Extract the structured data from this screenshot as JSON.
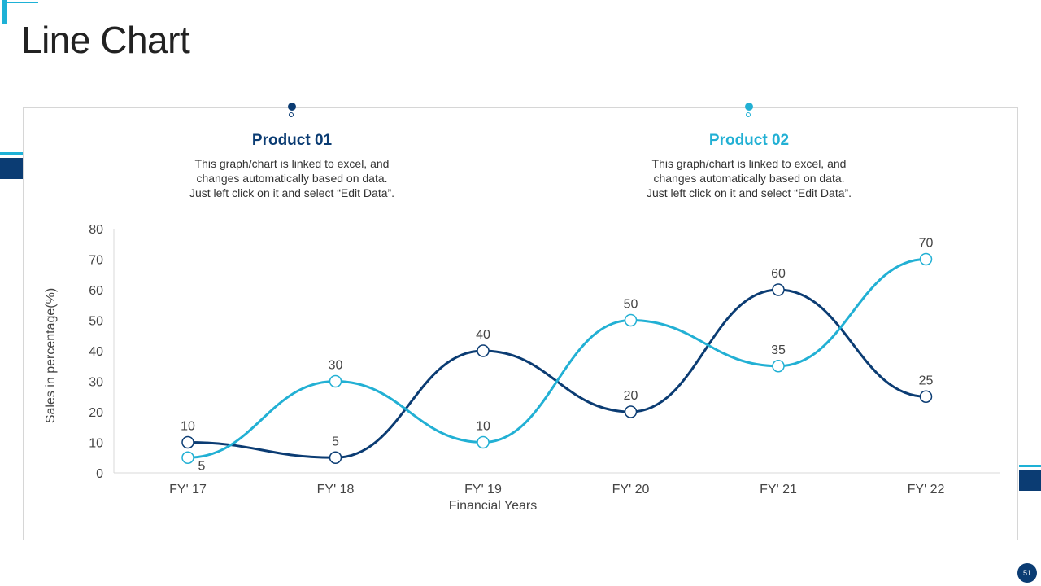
{
  "title": "Line Chart",
  "page_number": "51",
  "colors": {
    "product1": "#0b3c73",
    "product2": "#22b0d4",
    "accent": "#1eb1d6"
  },
  "products": [
    {
      "name": "Product 01",
      "description": "This graph/chart is linked to excel, and\nchanges automatically based on data.\nJust left click on it and select “Edit Data”."
    },
    {
      "name": "Product 02",
      "description": "This graph/chart is linked to excel, and\nchanges automatically based on data.\nJust left click on it and select “Edit Data”."
    }
  ],
  "chart_data": {
    "type": "line",
    "categories": [
      "FY' 17",
      "FY' 18",
      "FY' 19",
      "FY' 20",
      "FY' 21",
      "FY' 22"
    ],
    "series": [
      {
        "name": "Product 01",
        "values": [
          10,
          5,
          40,
          20,
          60,
          25
        ]
      },
      {
        "name": "Product 02",
        "values": [
          5,
          30,
          10,
          50,
          35,
          70
        ]
      }
    ],
    "xlabel": "Financial Years",
    "ylabel": "Sales in percentage(%)",
    "ylim": [
      0,
      80
    ],
    "yticks": [
      0,
      10,
      20,
      30,
      40,
      50,
      60,
      70,
      80
    ],
    "grid": false,
    "smooth": true,
    "data_labels": true
  }
}
